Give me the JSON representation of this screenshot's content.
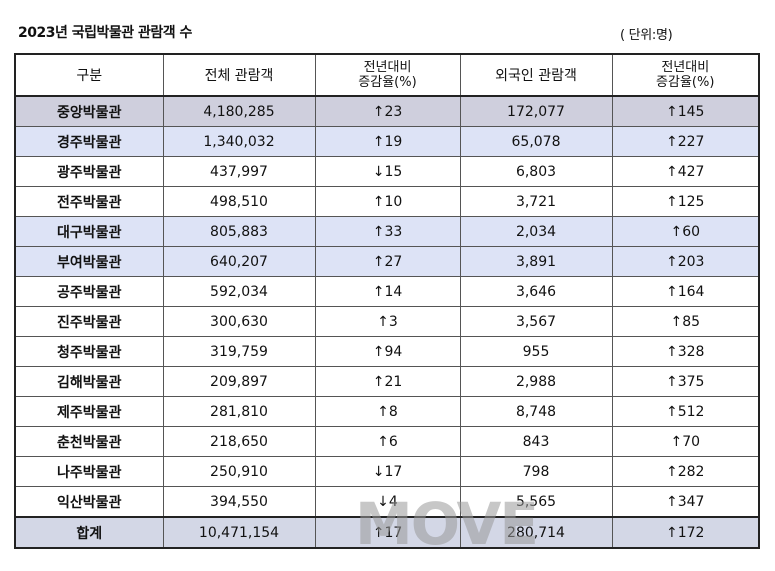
{
  "title": "2023년 국립박물관 관람객 수",
  "unit": "( 단위:명)",
  "headers": {
    "category": "구분",
    "total_visitors": "전체 관람객",
    "change_total_line1": "전년대비",
    "change_total_line2": "증감율(%)",
    "foreign_visitors": "외국인 관람객",
    "change_foreign_line1": "전년대비",
    "change_foreign_line2": "증감율(%)"
  },
  "rows": [
    {
      "name": "중앙박물관",
      "total": "4,180,285",
      "total_change": "↑23",
      "foreign": "172,077",
      "foreign_change": "↑145"
    },
    {
      "name": "경주박물관",
      "total": "1,340,032",
      "total_change": "↑19",
      "foreign": "65,078",
      "foreign_change": "↑227"
    },
    {
      "name": "광주박물관",
      "total": "437,997",
      "total_change": "↓15",
      "foreign": "6,803",
      "foreign_change": "↑427"
    },
    {
      "name": "전주박물관",
      "total": "498,510",
      "total_change": "↑10",
      "foreign": "3,721",
      "foreign_change": "↑125"
    },
    {
      "name": "대구박물관",
      "total": "805,883",
      "total_change": "↑33",
      "foreign": "2,034",
      "foreign_change": "↑60"
    },
    {
      "name": "부여박물관",
      "total": "640,207",
      "total_change": "↑27",
      "foreign": "3,891",
      "foreign_change": "↑203"
    },
    {
      "name": "공주박물관",
      "total": "592,034",
      "total_change": "↑14",
      "foreign": "3,646",
      "foreign_change": "↑164"
    },
    {
      "name": "진주박물관",
      "total": "300,630",
      "total_change": "↑3",
      "foreign": "3,567",
      "foreign_change": "↑85"
    },
    {
      "name": "청주박물관",
      "total": "319,759",
      "total_change": "↑94",
      "foreign": "955",
      "foreign_change": "↑328"
    },
    {
      "name": "김해박물관",
      "total": "209,897",
      "total_change": "↑21",
      "foreign": "2,988",
      "foreign_change": "↑375"
    },
    {
      "name": "제주박물관",
      "total": "281,810",
      "total_change": "↑8",
      "foreign": "8,748",
      "foreign_change": "↑512"
    },
    {
      "name": "춘천박물관",
      "total": "218,650",
      "total_change": "↑6",
      "foreign": "843",
      "foreign_change": "↑70"
    },
    {
      "name": "나주박물관",
      "total": "250,910",
      "total_change": "↓17",
      "foreign": "798",
      "foreign_change": "↑282"
    },
    {
      "name": "익산박물관",
      "total": "394,550",
      "total_change": "↓4",
      "foreign": "5,565",
      "foreign_change": "↑347"
    }
  ],
  "total_row": {
    "name": "합계",
    "total": "10,471,154",
    "total_change": "↑17",
    "foreign": "280,714",
    "foreign_change": "↑172"
  },
  "watermark": {
    "logo_text": "MOVE"
  }
}
